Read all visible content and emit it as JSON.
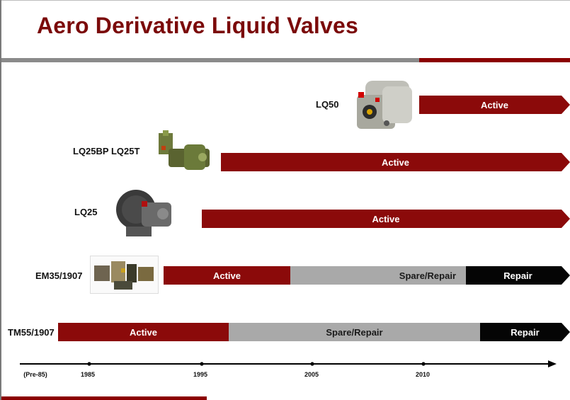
{
  "title": "Aero Derivative Liquid Valves",
  "colors": {
    "active": "#8b0a0a",
    "spare_repair": "#a9a9a9",
    "repair": "#050505",
    "title": "#7b0a0a"
  },
  "rows": [
    {
      "label": "LQ50",
      "image": "lq50-valve-photo",
      "segments": [
        {
          "status": "Active"
        }
      ]
    },
    {
      "label": "LQ25BP LQ25T",
      "image": "lq25bp-valve-photo",
      "segments": [
        {
          "status": "Active"
        }
      ]
    },
    {
      "label": "LQ25",
      "image": "lq25-valve-photo",
      "segments": [
        {
          "status": "Active"
        }
      ]
    },
    {
      "label": "EM35/1907",
      "image": "em35-valve-photo",
      "segments": [
        {
          "status": "Active"
        },
        {
          "status": "Spare/Repair"
        },
        {
          "status": "Repair"
        }
      ]
    },
    {
      "label": "TM55/1907",
      "segments": [
        {
          "status": "Active"
        },
        {
          "status": "Spare/Repair"
        },
        {
          "status": "Repair"
        }
      ]
    }
  ],
  "axis": {
    "ticks": [
      "(Pre-85)",
      "1985",
      "1995",
      "2005",
      "2010"
    ]
  }
}
